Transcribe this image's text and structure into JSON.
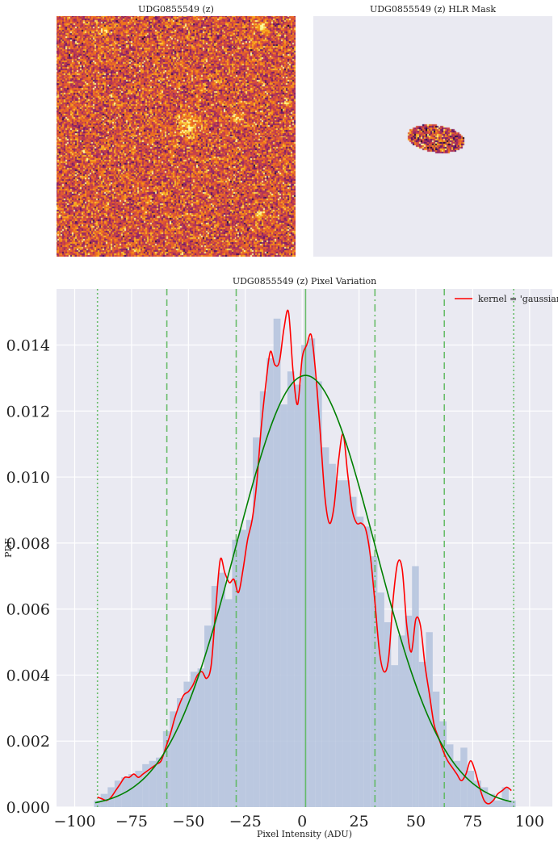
{
  "panels": {
    "image_title": "UDG0855549 (z)",
    "mask_title": "UDG0855549 (z) HLR Mask",
    "hist_title": "UDG0855549 (z) Pixel Variation"
  },
  "colors": {
    "axes_bg": "#eaeaf2",
    "grid": "#ffffff",
    "hist_fill": "#b6c4de",
    "kde": "#ff0000",
    "gaussian": "#008000",
    "vlines": "#5cb85c"
  },
  "chart_data": [
    {
      "type": "image",
      "title": "UDG0855549 (z)",
      "colormap": "inferno"
    },
    {
      "type": "image",
      "title": "UDG0855549 (z) HLR Mask",
      "mask_shape": "ellipse"
    },
    {
      "type": "bar",
      "title": "UDG0855549 (z) Pixel Variation",
      "xlabel": "Pixel Intensity (ADU)",
      "ylabel": "PDF",
      "xlim": [
        -108,
        110
      ],
      "ylim": [
        0,
        0.0157
      ],
      "xticks": [
        "−100",
        "−75",
        "−50",
        "−25",
        "0",
        "25",
        "50",
        "75",
        "100"
      ],
      "xtick_values": [
        -100,
        -75,
        -50,
        -25,
        0,
        25,
        50,
        75,
        100
      ],
      "yticks": [
        "0.000",
        "0.002",
        "0.004",
        "0.006",
        "0.008",
        "0.010",
        "0.012",
        "0.014"
      ],
      "ytick_values": [
        0,
        0.002,
        0.004,
        0.006,
        0.008,
        0.01,
        0.012,
        0.014
      ],
      "grid": true,
      "legend": {
        "position": "top-right",
        "entries": [
          "kernel = 'gaussian'"
        ]
      },
      "histogram": {
        "bin_edges": [
          -91.5,
          -88.6,
          -85.5,
          -82.5,
          -79.5,
          -76.4,
          -73.4,
          -70.3,
          -67.3,
          -64.3,
          -61.2,
          -58.2,
          -55.1,
          -52.1,
          -49.1,
          -46.0,
          -43.0,
          -39.9,
          -36.9,
          -33.8,
          -30.8,
          -27.8,
          -24.7,
          -21.7,
          -18.6,
          -15.6,
          -12.6,
          -9.5,
          -6.5,
          -3.4,
          -0.4,
          2.7,
          5.7,
          8.7,
          11.8,
          14.8,
          17.9,
          20.9,
          23.9,
          27.0,
          30.0,
          33.1,
          36.1,
          39.1,
          42.2,
          45.2,
          48.3,
          51.3,
          54.4,
          57.4,
          60.4,
          63.5,
          66.5,
          69.6,
          72.6,
          75.6,
          78.7,
          81.7,
          84.8,
          87.8,
          90.8,
          93.9
        ],
        "values": [
          0.0002,
          0.0004,
          0.0006,
          0.0008,
          0.0009,
          0.001,
          0.0011,
          0.0013,
          0.0014,
          0.0015,
          0.0023,
          0.0029,
          0.0033,
          0.0038,
          0.0041,
          0.0042,
          0.0055,
          0.0067,
          0.0071,
          0.0063,
          0.0081,
          0.0084,
          0.0087,
          0.0112,
          0.0126,
          0.0136,
          0.0148,
          0.0122,
          0.0132,
          0.0128,
          0.014,
          0.0142,
          0.0129,
          0.0109,
          0.0104,
          0.0099,
          0.0099,
          0.0094,
          0.0088,
          0.0085,
          0.0076,
          0.0065,
          0.0056,
          0.0043,
          0.0052,
          0.0058,
          0.0073,
          0.0044,
          0.0053,
          0.0035,
          0.0026,
          0.0019,
          0.0014,
          0.0018,
          0.0011,
          0.0008,
          0.0006,
          0.0004,
          0.0002,
          0.0006,
          0.0002
        ]
      },
      "series": [
        {
          "name": "kernel = 'gaussian'",
          "x": [
            -90,
            -88,
            -86,
            -84,
            -82,
            -80,
            -78,
            -76,
            -74,
            -72,
            -70,
            -68,
            -66,
            -64,
            -62,
            -60,
            -58,
            -56,
            -54,
            -52,
            -50,
            -48,
            -46,
            -44,
            -42,
            -40,
            -38,
            -36,
            -34,
            -32,
            -30,
            -28,
            -26,
            -24,
            -22,
            -20,
            -18,
            -16,
            -14,
            -12,
            -10,
            -8,
            -6,
            -4,
            -2,
            0,
            2,
            4,
            6,
            8,
            10,
            12,
            14,
            16,
            18,
            20,
            22,
            24,
            26,
            28,
            30,
            32,
            34,
            36,
            38,
            40,
            42,
            44,
            46,
            48,
            50,
            52,
            54,
            56,
            58,
            60,
            62,
            64,
            66,
            68,
            70,
            72,
            74,
            76,
            78,
            80,
            82,
            84,
            86,
            88,
            90,
            92
          ],
          "y": [
            0.0003,
            0.00025,
            0.0002,
            0.0003,
            0.0005,
            0.0007,
            0.0009,
            0.0009,
            0.001,
            0.0009,
            0.001,
            0.0011,
            0.0012,
            0.0013,
            0.0014,
            0.0018,
            0.0022,
            0.0027,
            0.0031,
            0.0034,
            0.0035,
            0.0037,
            0.004,
            0.0041,
            0.0039,
            0.0043,
            0.006,
            0.0075,
            0.0071,
            0.0068,
            0.0069,
            0.0065,
            0.0072,
            0.0081,
            0.0087,
            0.0098,
            0.0115,
            0.0128,
            0.0138,
            0.0134,
            0.0135,
            0.0145,
            0.015,
            0.0132,
            0.0122,
            0.0136,
            0.014,
            0.0143,
            0.0131,
            0.0113,
            0.0094,
            0.0086,
            0.0091,
            0.0105,
            0.0113,
            0.0101,
            0.009,
            0.0086,
            0.0086,
            0.0084,
            0.0076,
            0.0062,
            0.0047,
            0.0041,
            0.0045,
            0.0063,
            0.0074,
            0.0072,
            0.0055,
            0.0047,
            0.0057,
            0.0055,
            0.0043,
            0.0034,
            0.0025,
            0.0021,
            0.0017,
            0.0014,
            0.0012,
            0.001,
            0.0008,
            0.001,
            0.0014,
            0.0011,
            0.0006,
            0.0002,
            0.0001,
            0.0002,
            0.0004,
            0.0005,
            0.0006,
            0.0005
          ]
        },
        {
          "name": "",
          "distribution": "normal",
          "mean": 1.5,
          "std": 30.5,
          "x_range": [
            -91,
            92
          ]
        }
      ],
      "vlines": [
        {
          "x": 1.5,
          "style": "solid"
        },
        {
          "x": -29,
          "style": "dashdot"
        },
        {
          "x": 32,
          "style": "dashdot"
        },
        {
          "x": -59.5,
          "style": "dashed"
        },
        {
          "x": 62.5,
          "style": "dashed"
        },
        {
          "x": -90,
          "style": "dotted"
        },
        {
          "x": 93,
          "style": "dotted"
        }
      ]
    }
  ]
}
